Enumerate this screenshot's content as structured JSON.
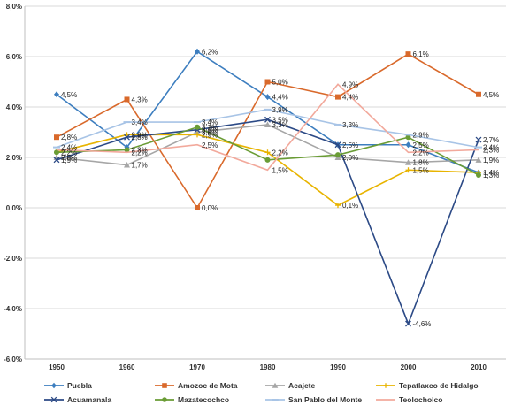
{
  "chart_data": {
    "type": "line",
    "title": "",
    "xlabel": "",
    "ylabel": "",
    "x": [
      "1950",
      "1960",
      "1970",
      "1980",
      "1990",
      "2000",
      "2010"
    ],
    "ylim": [
      -6.0,
      8.0
    ],
    "yticks": [
      -6.0,
      -4.0,
      -2.0,
      0.0,
      2.0,
      4.0,
      6.0,
      8.0
    ],
    "ytick_labels": [
      "-6,0%",
      "-4,0%",
      "-2,0%",
      "0,0%",
      "2,0%",
      "4,0%",
      "6,0%",
      "8,0%"
    ],
    "grid": "horizontal",
    "legend_position": "bottom",
    "series": [
      {
        "name": "Puebla",
        "color": "#3d7ebf",
        "marker": "diamond",
        "values": [
          4.5,
          2.4,
          6.2,
          4.4,
          2.5,
          2.5,
          1.4
        ],
        "labels": [
          "4,5%",
          "",
          "6,2%",
          "4,4%",
          "2,5%",
          "2,5%",
          "1,4%"
        ]
      },
      {
        "name": "Amozoc de Mota",
        "color": "#d9692b",
        "marker": "square",
        "values": [
          2.8,
          4.3,
          0.0,
          5.0,
          4.4,
          6.1,
          4.5
        ],
        "labels": [
          "2,8%",
          "4,3%",
          "0,0%",
          "5,0%",
          "4,4%",
          "6,1%",
          "4,5%"
        ]
      },
      {
        "name": "Acajete",
        "color": "#a6a6a6",
        "marker": "triangle",
        "values": [
          2.0,
          1.7,
          3.0,
          3.3,
          2.0,
          1.8,
          1.9
        ],
        "labels": [
          "2,0%",
          "1,7%",
          "3,0%",
          "3,3%",
          "2,0%",
          "1,8%",
          "1,9%"
        ]
      },
      {
        "name": "Tepatlaxco de Hidalgo",
        "color": "#e8b400",
        "marker": "cross",
        "values": [
          2.2,
          2.9,
          2.9,
          2.2,
          0.1,
          1.5,
          1.4
        ],
        "labels": [
          "2,2%",
          "2,9%",
          "2,9%",
          "2,2%",
          "0,1%",
          "1,5%",
          ""
        ]
      },
      {
        "name": "Acuamanala",
        "color": "#2c4a86",
        "marker": "x",
        "values": [
          1.9,
          2.8,
          3.1,
          3.5,
          2.5,
          -4.6,
          2.7
        ],
        "labels": [
          "1,9%",
          "2,8%",
          "3,1%",
          "3,5%",
          "",
          "-4,6%",
          "2,7%"
        ]
      },
      {
        "name": "Mazatecochco",
        "color": "#6a9c35",
        "marker": "circle",
        "values": [
          2.2,
          2.3,
          3.2,
          1.9,
          2.1,
          2.8,
          1.3
        ],
        "labels": [
          "",
          "2,3%",
          "3,2%",
          "",
          "",
          "",
          "1,3%"
        ]
      },
      {
        "name": "San Pablo del Monte",
        "color": "#a8c4e6",
        "marker": "dash",
        "values": [
          2.4,
          3.4,
          3.4,
          3.9,
          3.3,
          2.9,
          2.4
        ],
        "labels": [
          "2,4%",
          "3,4%",
          "3,4%",
          "3,9%",
          "3,3%",
          "2,9%",
          "2,4%"
        ]
      },
      {
        "name": "Teolocholco",
        "color": "#f2a99c",
        "marker": "none",
        "values": [
          2.3,
          2.2,
          2.5,
          1.5,
          4.9,
          2.2,
          2.3
        ],
        "labels": [
          "",
          "2,2%",
          "2,5%",
          "1,5%",
          "4,9%",
          "2,2%",
          "2,3%"
        ]
      }
    ]
  }
}
